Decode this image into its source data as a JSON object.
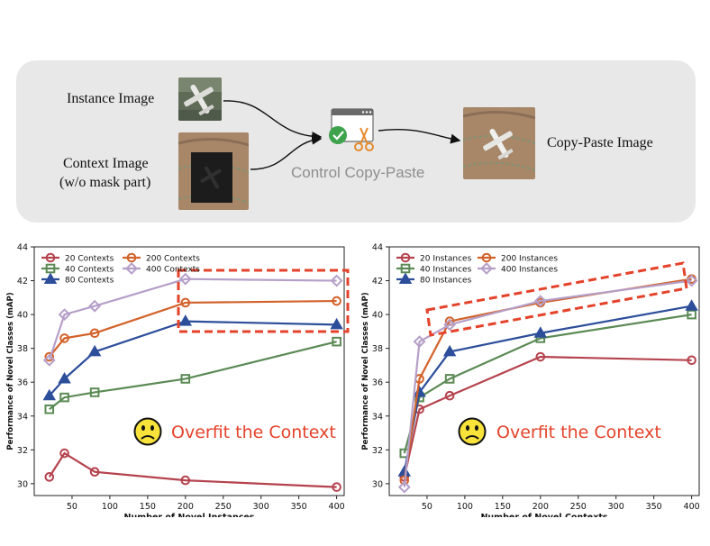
{
  "diagram": {
    "instance_label": "Instance Image",
    "context_label": "Context Image",
    "context_sublabel": "(w/o mask part)",
    "method_label": "Control Copy-Paste",
    "output_label": "Copy-Paste Image"
  },
  "colors": {
    "c20": "#b5434e",
    "c40": "#5b8a55",
    "c80": "#2d4e9a",
    "c200": "#d2622a",
    "c400": "#b59fc8",
    "highlight": "#e4422a",
    "annotation": "#e4422a"
  },
  "chart_data": [
    {
      "type": "line",
      "xlabel": "Number of Novel Instances",
      "ylabel": "Performance of Novel Classes (mAP)",
      "xlim": [
        0,
        410
      ],
      "ylim": [
        29.3,
        44
      ],
      "xticks": [
        50,
        100,
        150,
        200,
        250,
        300,
        350,
        400
      ],
      "yticks": [
        30,
        32,
        34,
        36,
        38,
        40,
        42,
        44
      ],
      "legend_position": "top-left",
      "annotation": "Overfit the Context",
      "x": [
        20,
        40,
        80,
        200,
        400
      ],
      "series": [
        {
          "name": "20 Contexts",
          "marker": "circle",
          "color_key": "c20",
          "values": [
            30.4,
            31.8,
            30.7,
            30.2,
            29.8
          ]
        },
        {
          "name": "40 Contexts",
          "marker": "square",
          "color_key": "c40",
          "values": [
            34.4,
            35.1,
            35.4,
            36.2,
            38.4
          ]
        },
        {
          "name": "80 Contexts",
          "marker": "triangle",
          "color_key": "c80",
          "values": [
            35.2,
            36.2,
            37.8,
            39.6,
            39.4
          ]
        },
        {
          "name": "200 Contexts",
          "marker": "circle",
          "color_key": "c200",
          "values": [
            37.5,
            38.6,
            38.9,
            40.7,
            40.8
          ]
        },
        {
          "name": "400 Contexts",
          "marker": "diamond",
          "color_key": "c400",
          "values": [
            37.3,
            40.0,
            40.5,
            42.1,
            42.0
          ]
        }
      ]
    },
    {
      "type": "line",
      "xlabel": "Number of Novel Contexts",
      "ylabel": "Performance of Novel Classes (mAP)",
      "xlim": [
        0,
        410
      ],
      "ylim": [
        29.3,
        44
      ],
      "xticks": [
        50,
        100,
        150,
        200,
        250,
        300,
        350,
        400
      ],
      "yticks": [
        30,
        32,
        34,
        36,
        38,
        40,
        42,
        44
      ],
      "legend_position": "top-left",
      "annotation": "Overfit the Context",
      "x": [
        20,
        40,
        80,
        200,
        400
      ],
      "series": [
        {
          "name": "20 Instances",
          "marker": "circle",
          "color_key": "c20",
          "values": [
            30.4,
            34.4,
            35.2,
            37.5,
            37.3
          ]
        },
        {
          "name": "40 Instances",
          "marker": "square",
          "color_key": "c40",
          "values": [
            31.8,
            35.1,
            36.2,
            38.6,
            40.0
          ]
        },
        {
          "name": "80 Instances",
          "marker": "triangle",
          "color_key": "c80",
          "values": [
            30.7,
            35.4,
            37.8,
            38.9,
            40.5
          ]
        },
        {
          "name": "200 Instances",
          "marker": "circle",
          "color_key": "c200",
          "values": [
            30.2,
            36.2,
            39.6,
            40.7,
            42.1
          ]
        },
        {
          "name": "400 Instances",
          "marker": "diamond",
          "color_key": "c400",
          "values": [
            29.8,
            38.4,
            39.4,
            40.8,
            42.0
          ]
        }
      ]
    }
  ]
}
